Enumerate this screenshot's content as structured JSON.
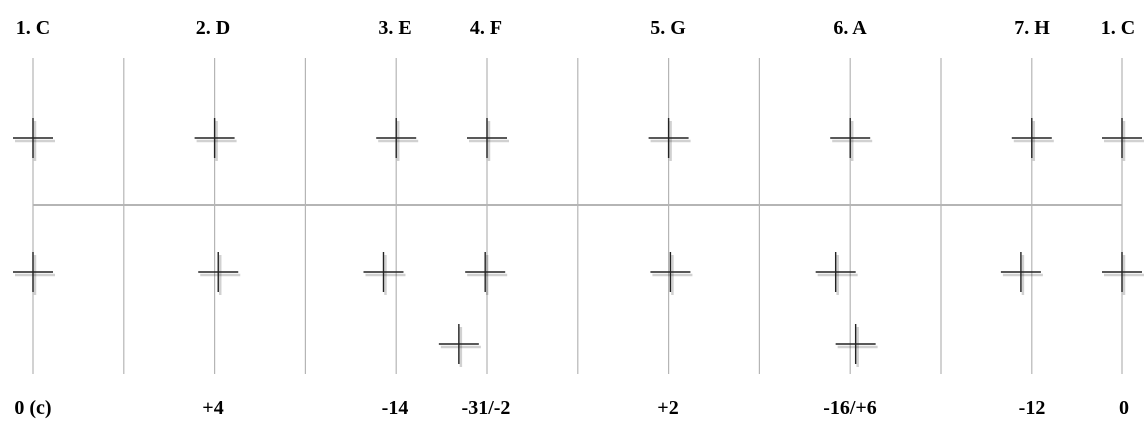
{
  "diagram": {
    "top_labels": [
      "1. C",
      "2. D",
      "3. E",
      "4. F",
      "5. G",
      "6. A",
      "7. H",
      "1. C"
    ],
    "bottom_labels": [
      "0 (c)",
      "+4",
      "-14",
      "-31/-2",
      "+2",
      "-16/+6",
      "-12",
      "0"
    ],
    "reference_marks": [
      {
        "name": "reference-mark-c1",
        "degree": 1,
        "cents": 0
      },
      {
        "name": "reference-mark-d",
        "degree": 2,
        "cents": 0
      },
      {
        "name": "reference-mark-e",
        "degree": 3,
        "cents": 0
      },
      {
        "name": "reference-mark-f",
        "degree": 4,
        "cents": 0
      },
      {
        "name": "reference-mark-g",
        "degree": 5,
        "cents": 0
      },
      {
        "name": "reference-mark-a",
        "degree": 6,
        "cents": 0
      },
      {
        "name": "reference-mark-h",
        "degree": 7,
        "cents": 0
      },
      {
        "name": "reference-mark-c2",
        "degree": 8,
        "cents": 0
      }
    ],
    "tuned_marks": [
      {
        "name": "tuned-mark-c1",
        "degree": 1,
        "cents": 0,
        "row": 1
      },
      {
        "name": "tuned-mark-d",
        "degree": 2,
        "cents": 4,
        "row": 1
      },
      {
        "name": "tuned-mark-e",
        "degree": 3,
        "cents": -14,
        "row": 1
      },
      {
        "name": "tuned-mark-f",
        "degree": 4,
        "cents": -2,
        "row": 1
      },
      {
        "name": "tuned-mark-f-alt",
        "degree": 4,
        "cents": -31,
        "row": 2
      },
      {
        "name": "tuned-mark-g",
        "degree": 5,
        "cents": 2,
        "row": 1
      },
      {
        "name": "tuned-mark-a",
        "degree": 6,
        "cents": -16,
        "row": 1
      },
      {
        "name": "tuned-mark-a-alt",
        "degree": 6,
        "cents": 6,
        "row": 2
      },
      {
        "name": "tuned-mark-h",
        "degree": 7,
        "cents": -12,
        "row": 1
      },
      {
        "name": "tuned-mark-c2",
        "degree": 8,
        "cents": 0,
        "row": 1
      }
    ]
  }
}
